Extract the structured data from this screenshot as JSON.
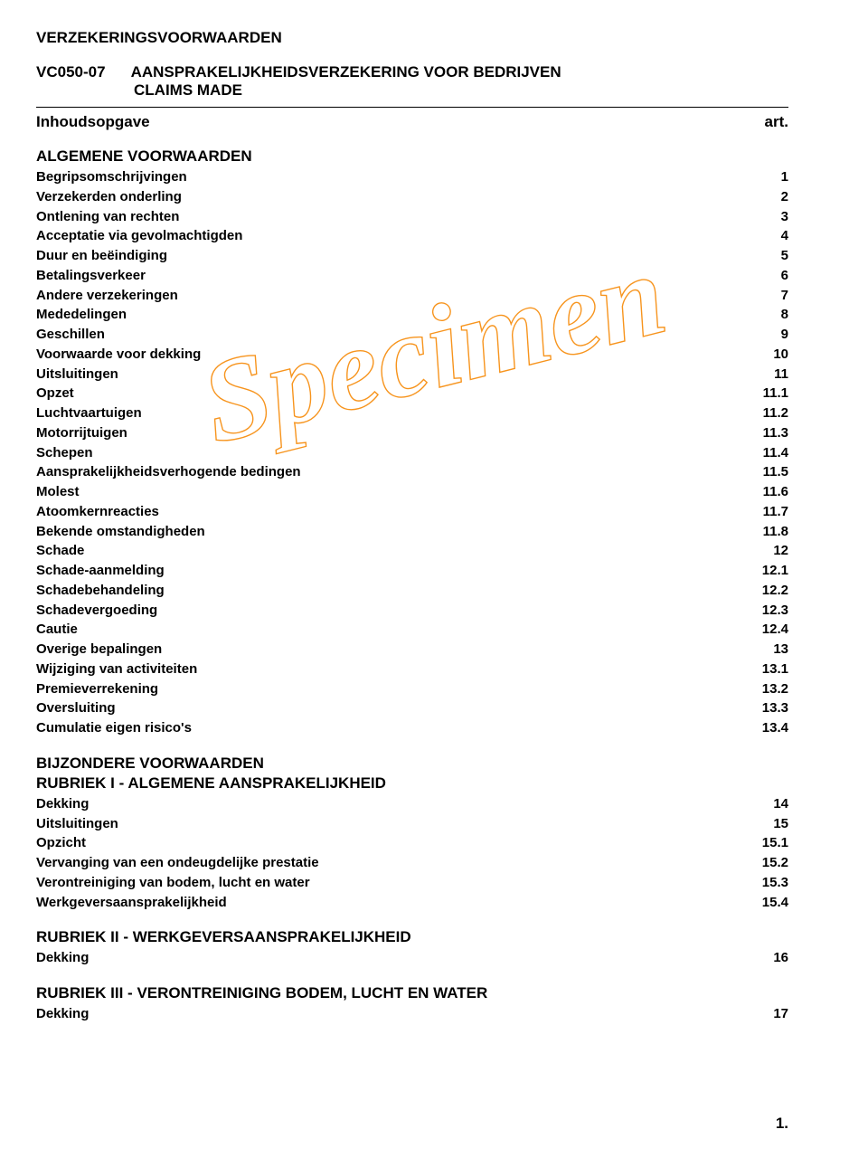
{
  "header": {
    "main_title": "VERZEKERINGSVOORWAARDEN",
    "code": "VC050-07",
    "product": "AANSPRAKELIJKHEIDSVERZEKERING VOOR BEDRIJVEN",
    "claims": "CLAIMS MADE",
    "toc_label": "Inhoudsopgave",
    "art_label": "art."
  },
  "watermark_text": "Specimen",
  "sections": {
    "s1": {
      "title": "ALGEMENE VOORWAARDEN",
      "items": [
        {
          "label": "Begripsomschrijvingen",
          "art": "1"
        },
        {
          "label": "Verzekerden onderling",
          "art": "2"
        },
        {
          "label": "Ontlening van rechten",
          "art": "3"
        },
        {
          "label": "Acceptatie via gevolmachtigden",
          "art": "4"
        },
        {
          "label": "Duur en beëindiging",
          "art": "5"
        },
        {
          "label": "Betalingsverkeer",
          "art": "6"
        },
        {
          "label": "Andere verzekeringen",
          "art": "7"
        },
        {
          "label": "Mededelingen",
          "art": "8"
        },
        {
          "label": "Geschillen",
          "art": "9"
        },
        {
          "label": "Voorwaarde voor dekking",
          "art": "10"
        },
        {
          "label": "Uitsluitingen",
          "art": "11"
        },
        {
          "label": "Opzet",
          "art": "11.1"
        },
        {
          "label": "Luchtvaartuigen",
          "art": "11.2"
        },
        {
          "label": "Motorrijtuigen",
          "art": "11.3"
        },
        {
          "label": "Schepen",
          "art": "11.4"
        },
        {
          "label": "Aansprakelijkheidsverhogende bedingen",
          "art": "11.5"
        },
        {
          "label": "Molest",
          "art": "11.6"
        },
        {
          "label": "Atoomkernreacties",
          "art": "11.7"
        },
        {
          "label": "Bekende omstandigheden",
          "art": "11.8"
        },
        {
          "label": "Schade",
          "art": "12"
        },
        {
          "label": "Schade-aanmelding",
          "art": "12.1"
        },
        {
          "label": "Schadebehandeling",
          "art": "12.2"
        },
        {
          "label": "Schadevergoeding",
          "art": "12.3"
        },
        {
          "label": "Cautie",
          "art": "12.4"
        },
        {
          "label": "Overige bepalingen",
          "art": "13"
        },
        {
          "label": "Wijziging van activiteiten",
          "art": "13.1"
        },
        {
          "label": "Premieverrekening",
          "art": "13.2"
        },
        {
          "label": "Oversluiting",
          "art": "13.3"
        },
        {
          "label": "Cumulatie eigen risico's",
          "art": "13.4"
        }
      ]
    },
    "s2": {
      "title": "BIJZONDERE VOORWAARDEN",
      "subtitle": "RUBRIEK I - ALGEMENE AANSPRAKELIJKHEID",
      "items": [
        {
          "label": "Dekking",
          "art": "14"
        },
        {
          "label": "Uitsluitingen",
          "art": "15"
        },
        {
          "label": "Opzicht",
          "art": "15.1"
        },
        {
          "label": "Vervanging van een ondeugdelijke prestatie",
          "art": "15.2"
        },
        {
          "label": "Verontreiniging van bodem, lucht en water",
          "art": "15.3"
        },
        {
          "label": "Werkgeversaansprakelijkheid",
          "art": "15.4"
        }
      ]
    },
    "s3": {
      "title": "RUBRIEK II - WERKGEVERSAANSPRAKELIJKHEID",
      "items": [
        {
          "label": "Dekking",
          "art": "16"
        }
      ]
    },
    "s4": {
      "title": "RUBRIEK III - VERONTREINIGING BODEM, LUCHT EN WATER",
      "items": [
        {
          "label": "Dekking",
          "art": "17"
        }
      ]
    }
  },
  "footer": {
    "page_num": "1."
  }
}
